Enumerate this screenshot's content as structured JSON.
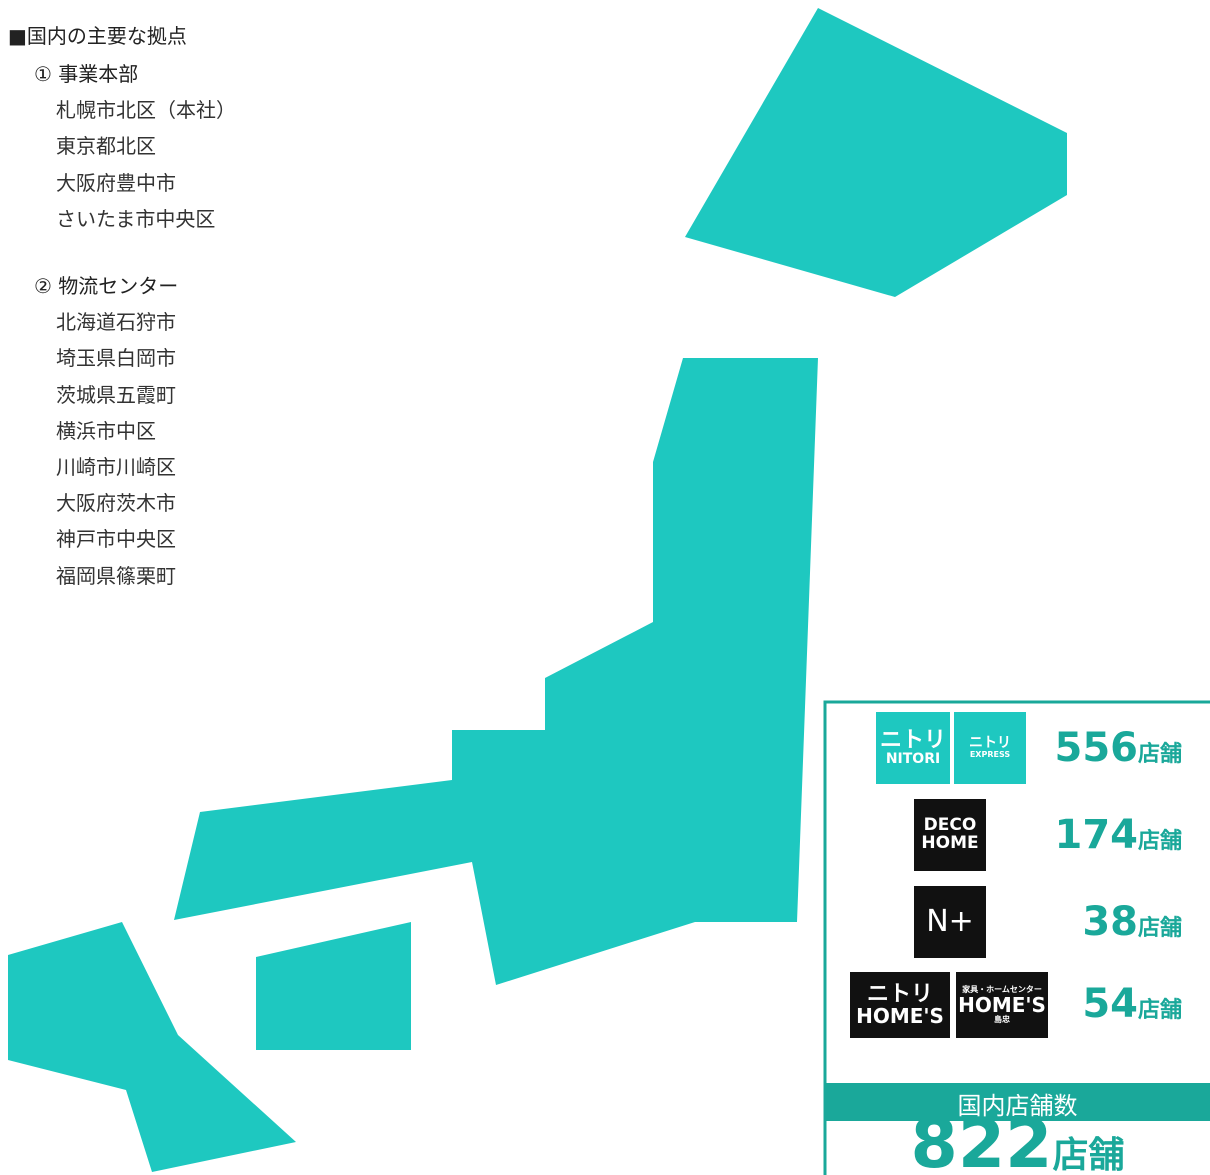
{
  "title": "■国内の主要な拠点",
  "sections": [
    {
      "heading": "① 事業本部",
      "items": [
        "札幌市北区（本社）",
        "東京都北区",
        "大阪府豊中市",
        "さいたま市中央区"
      ]
    },
    {
      "heading": "② 物流センター",
      "items": [
        "北海道石狩市",
        "埼玉県白岡市",
        "茨城県五霞町",
        "横浜市中区",
        "川崎市川崎区",
        "大阪府茨木市",
        "神戸市中央区",
        "福岡県篠栗町"
      ]
    }
  ],
  "stores": {
    "unit": "店舗",
    "brands": [
      {
        "logos": [
          [
            "ニトリ",
            "NITORI"
          ],
          [
            "ニトリ",
            "EXPRESS"
          ]
        ],
        "count": 556
      },
      {
        "logos": [
          [
            "DECO",
            "HOME"
          ]
        ],
        "count": 174
      },
      {
        "logos": [
          [
            "N+"
          ]
        ],
        "count": 38
      },
      {
        "logos": [
          [
            "ニトリ",
            "HOME'S"
          ],
          [
            "家具・ホームセンター",
            "HOME'S",
            "島忠"
          ]
        ],
        "count": 54
      }
    ],
    "total_label": "国内店舗数",
    "total": 822
  }
}
